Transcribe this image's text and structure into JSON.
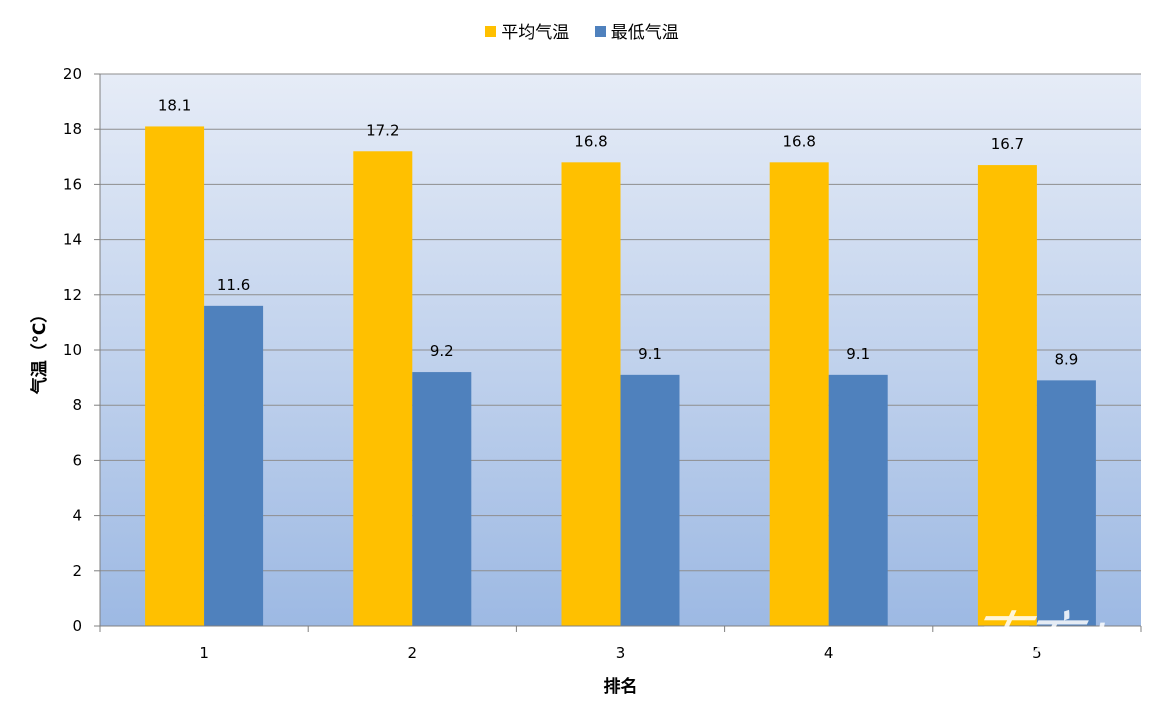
{
  "chart_data": {
    "type": "bar",
    "categories": [
      "1",
      "2",
      "3",
      "4",
      "5"
    ],
    "series": [
      {
        "name": "平均气温",
        "values": [
          18.1,
          17.2,
          16.8,
          16.8,
          16.7
        ],
        "color": "#FFC000"
      },
      {
        "name": "最低气温",
        "values": [
          11.6,
          9.2,
          9.1,
          9.1,
          8.9
        ],
        "color": "#4F81BD"
      }
    ],
    "data_labels": {
      "平均气温": [
        "18.1",
        "17.2",
        "16.8",
        "16.8",
        "16.7"
      ],
      "最低气温": [
        "11.6",
        "9.2",
        "9.1",
        "9.1",
        "8.9"
      ]
    },
    "xlabel": "排名",
    "ylabel": "气温（℃）",
    "ylim": [
      0,
      20
    ],
    "yticks": [
      0,
      2,
      4,
      6,
      8,
      10,
      12,
      14,
      16,
      18,
      20
    ],
    "grid": true,
    "legend_position": "top-center",
    "plot_background": "gradient light-blue"
  },
  "watermark": "南方+"
}
